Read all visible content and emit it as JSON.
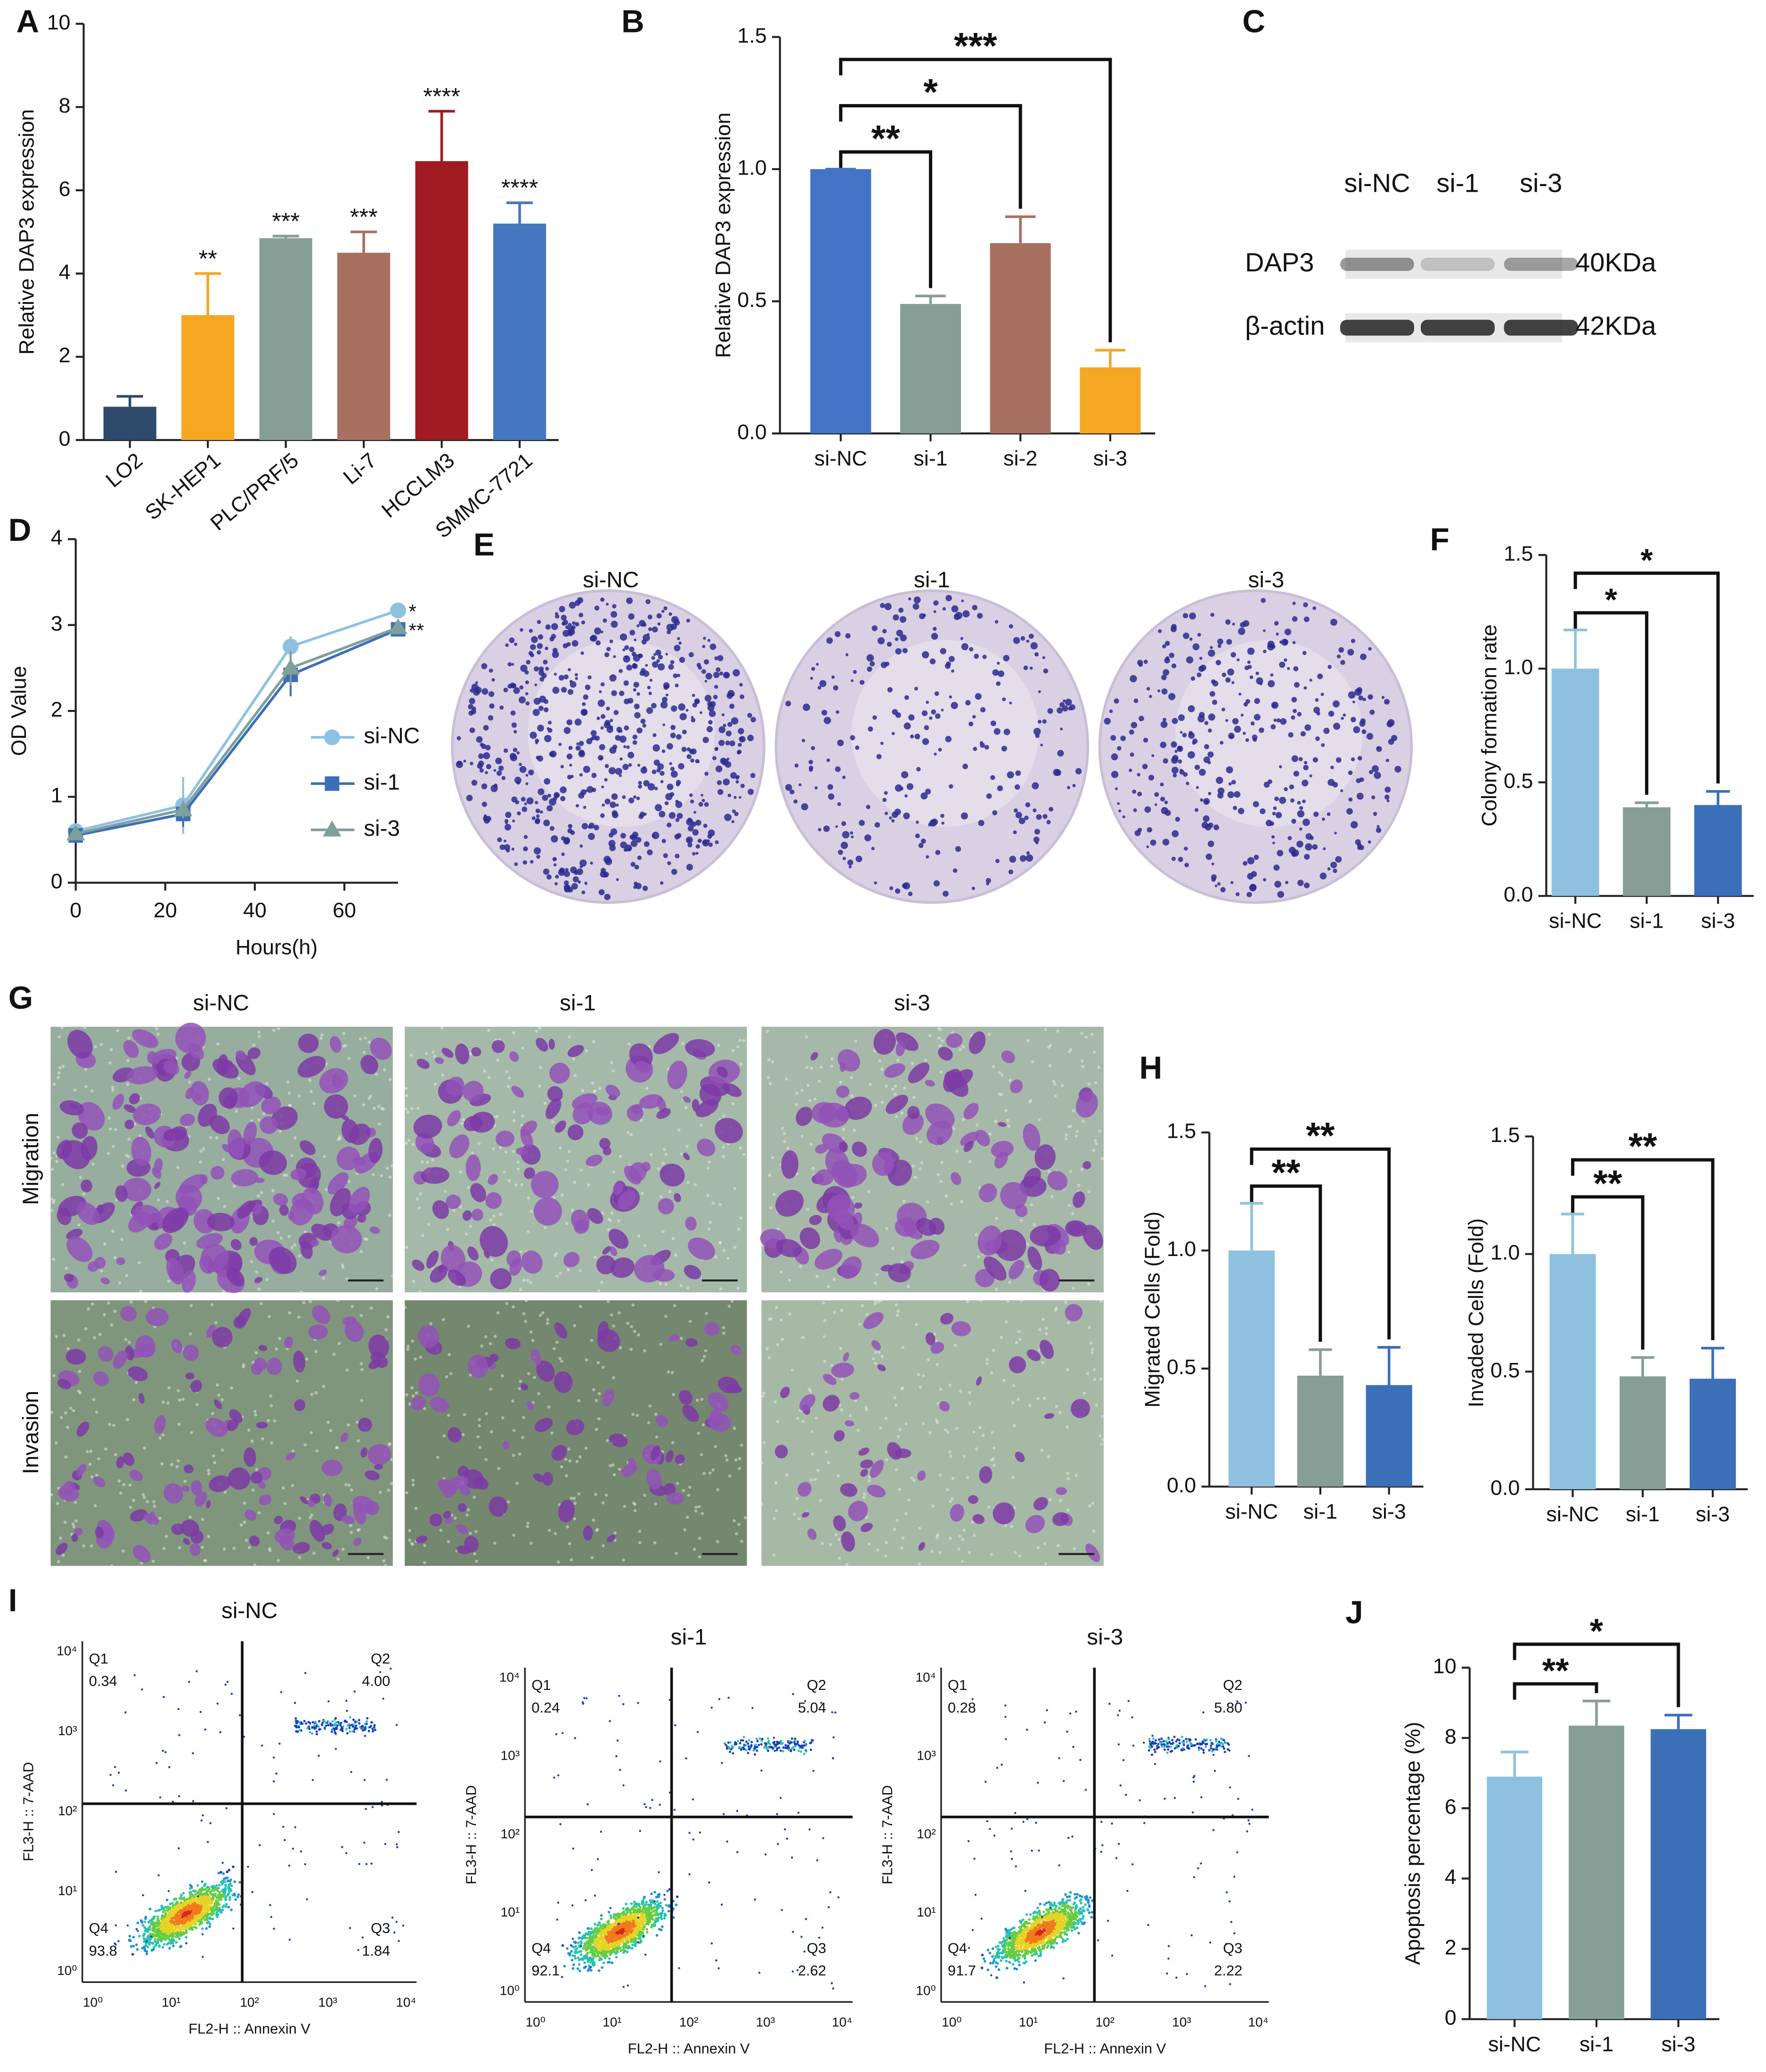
{
  "panel_labels": [
    "A",
    "B",
    "C",
    "D",
    "E",
    "F",
    "G",
    "H",
    "I",
    "J"
  ],
  "chart_data": [
    {
      "type": "bar",
      "ylabel": "Relative DAP3 expression",
      "categories": [
        "LO2",
        "SK-HEP1",
        "PLC/PRF/5",
        "Li-7",
        "HCCLM3",
        "SMMC-7721"
      ],
      "values": [
        0.8,
        3.0,
        4.85,
        4.5,
        6.7,
        5.2
      ],
      "errors": [
        0.25,
        1.0,
        0.05,
        0.5,
        1.2,
        0.5
      ],
      "colors": [
        "#2e4a6b",
        "#f5a623",
        "#869e96",
        "#a77060",
        "#a01c22",
        "#4577c0"
      ],
      "ylim": [
        0,
        10
      ],
      "yticks": [
        0,
        2,
        4,
        6,
        8,
        10
      ],
      "annotations": [
        {
          "category": "SK-HEP1",
          "label": "**"
        },
        {
          "category": "PLC/PRF/5",
          "label": "***"
        },
        {
          "category": "Li-7",
          "label": "***"
        },
        {
          "category": "HCCLM3",
          "label": "****"
        },
        {
          "category": "SMMC-7721",
          "label": "****"
        }
      ]
    },
    {
      "type": "bar",
      "ylabel": "Relative DAP3 expression",
      "categories": [
        "si-NC",
        "si-1",
        "si-2",
        "si-3"
      ],
      "values": [
        1.0,
        0.49,
        0.72,
        0.25
      ],
      "errors": [
        0,
        0.03,
        0.1,
        0.065
      ],
      "colors": [
        "#4472c4",
        "#869e96",
        "#a77060",
        "#f5a623"
      ],
      "ylim": [
        0,
        1.5
      ],
      "yticks": [
        {
          "value": 0,
          "label": "0.0"
        },
        {
          "value": 0.5,
          "label": "0.5"
        },
        {
          "value": 1,
          "label": "1.0"
        },
        {
          "value": 1.5,
          "label": "1.5"
        }
      ],
      "comparisons": [
        {
          "groups": [
            "si-NC",
            "si-1"
          ],
          "label": "**"
        },
        {
          "groups": [
            "si-NC",
            "si-2"
          ],
          "label": "*"
        },
        {
          "groups": [
            "si-NC",
            "si-3"
          ],
          "label": "***"
        }
      ]
    },
    {
      "type": "line",
      "xlabel": "Hours(h)",
      "ylabel": "OD Value",
      "x": [
        0,
        24,
        48,
        72
      ],
      "xlim": [
        0,
        72
      ],
      "xticks": [
        0,
        20,
        40,
        60
      ],
      "ylim": [
        0,
        4
      ],
      "yticks": [
        0,
        1,
        2,
        3,
        4
      ],
      "series": [
        {
          "name": "si-NC",
          "color": "#8ec1e0",
          "marker": "circle",
          "values": [
            0.6,
            0.9,
            2.75,
            3.17
          ],
          "errors": [
            0.05,
            0.33,
            0.12,
            0.05
          ]
        },
        {
          "name": "si-1",
          "color": "#3b6fb8",
          "marker": "square",
          "values": [
            0.55,
            0.8,
            2.42,
            2.95
          ],
          "errors": [
            0.05,
            0.15,
            0.25,
            0.05
          ]
        },
        {
          "name": "si-3",
          "color": "#7f9f9a",
          "marker": "triangle",
          "values": [
            0.57,
            0.85,
            2.5,
            2.97
          ],
          "errors": [
            0.05,
            0.1,
            0.2,
            0.05
          ]
        }
      ],
      "annotations": [
        {
          "series": "si-NC",
          "label": "*"
        },
        {
          "series": "si-1",
          "label": "**"
        }
      ]
    },
    {
      "type": "bar",
      "ylabel": "Colony formation rate",
      "categories": [
        "si-NC",
        "si-1",
        "si-3"
      ],
      "values": [
        1.0,
        0.39,
        0.4
      ],
      "errors": [
        0.17,
        0.02,
        0.06
      ],
      "colors": [
        "#8ec1e0",
        "#869e96",
        "#3b6fb8"
      ],
      "ylim": [
        0,
        1.5
      ],
      "yticks": [
        {
          "value": 0,
          "label": "0.0"
        },
        {
          "value": 0.5,
          "label": "0.5"
        },
        {
          "value": 1,
          "label": "1.0"
        },
        {
          "value": 1.5,
          "label": "1.5"
        }
      ],
      "comparisons": [
        {
          "groups": [
            "si-NC",
            "si-1"
          ],
          "label": "*"
        },
        {
          "groups": [
            "si-NC",
            "si-3"
          ],
          "label": "*"
        }
      ]
    },
    {
      "type": "bar",
      "ylabel": "Migrated Cells (Fold)",
      "categories": [
        "si-NC",
        "si-1",
        "si-3"
      ],
      "values": [
        1.0,
        0.47,
        0.43
      ],
      "errors": [
        0.2,
        0.11,
        0.16
      ],
      "colors": [
        "#8ec1e0",
        "#869e96",
        "#3b6fb8"
      ],
      "ylim": [
        0,
        1.5
      ],
      "yticks": [
        {
          "value": 0,
          "label": "0.0"
        },
        {
          "value": 0.5,
          "label": "0.5"
        },
        {
          "value": 1,
          "label": "1.0"
        },
        {
          "value": 1.5,
          "label": "1.5"
        }
      ],
      "comparisons": [
        {
          "groups": [
            "si-NC",
            "si-1"
          ],
          "label": "**"
        },
        {
          "groups": [
            "si-NC",
            "si-3"
          ],
          "label": "**"
        }
      ]
    },
    {
      "type": "bar",
      "ylabel": "Invaded Cells (Fold)",
      "categories": [
        "si-NC",
        "si-1",
        "si-3"
      ],
      "values": [
        1.0,
        0.48,
        0.47
      ],
      "errors": [
        0.17,
        0.08,
        0.13
      ],
      "colors": [
        "#8ec1e0",
        "#869e96",
        "#3b6fb8"
      ],
      "ylim": [
        0,
        1.5
      ],
      "yticks": [
        {
          "value": 0,
          "label": "0.0"
        },
        {
          "value": 0.5,
          "label": "0.5"
        },
        {
          "value": 1,
          "label": "1.0"
        },
        {
          "value": 1.5,
          "label": "1.5"
        }
      ],
      "comparisons": [
        {
          "groups": [
            "si-NC",
            "si-1"
          ],
          "label": "**"
        },
        {
          "groups": [
            "si-NC",
            "si-3"
          ],
          "label": "**"
        }
      ]
    },
    {
      "type": "bar",
      "ylabel": "Apoptosis percentage (%)",
      "categories": [
        "si-NC",
        "si-1",
        "si-3"
      ],
      "values": [
        6.9,
        8.35,
        8.25
      ],
      "errors": [
        0.7,
        0.7,
        0.4
      ],
      "colors": [
        "#8ec1e0",
        "#869e96",
        "#3b6fb8"
      ],
      "ylim": [
        0,
        10
      ],
      "yticks": [
        0,
        2,
        4,
        6,
        8,
        10
      ],
      "comparisons": [
        {
          "groups": [
            "si-NC",
            "si-1"
          ],
          "label": "**"
        },
        {
          "groups": [
            "si-NC",
            "si-3"
          ],
          "label": "*"
        }
      ]
    }
  ],
  "blot": {
    "lanes": [
      "si-NC",
      "si-1",
      "si-3"
    ],
    "rows": [
      {
        "name": "DAP3",
        "size": "40KDa"
      },
      {
        "name": "β-actin",
        "size": "42KDa"
      }
    ]
  },
  "colony": {
    "titles": [
      "si-NC",
      "si-1",
      "si-3"
    ]
  },
  "transwell": {
    "columns": [
      "si-NC",
      "si-1",
      "si-3"
    ],
    "rows": [
      "Migration",
      "Invasion"
    ]
  },
  "flow": {
    "x_label": "FL2-H :: Annexin V",
    "y_label": "FL3-H :: 7-AAD",
    "tick_labels": [
      "10⁰",
      "10¹",
      "10²",
      "10³",
      "10⁴"
    ],
    "plots": [
      {
        "title": "si-NC",
        "quadrants": [
          {
            "name": "Q1",
            "value": "0.34"
          },
          {
            "name": "Q2",
            "value": "4.00"
          },
          {
            "name": "Q3",
            "value": "1.84"
          },
          {
            "name": "Q4",
            "value": "93.8"
          }
        ]
      },
      {
        "title": "si-1",
        "quadrants": [
          {
            "name": "Q1",
            "value": "0.24"
          },
          {
            "name": "Q2",
            "value": "5.04"
          },
          {
            "name": "Q3",
            "value": "2.62"
          },
          {
            "name": "Q4",
            "value": "92.1"
          }
        ]
      },
      {
        "title": "si-3",
        "quadrants": [
          {
            "name": "Q1",
            "value": "0.28"
          },
          {
            "name": "Q2",
            "value": "5.80"
          },
          {
            "name": "Q3",
            "value": "2.22"
          },
          {
            "name": "Q4",
            "value": "91.7"
          }
        ]
      }
    ]
  }
}
